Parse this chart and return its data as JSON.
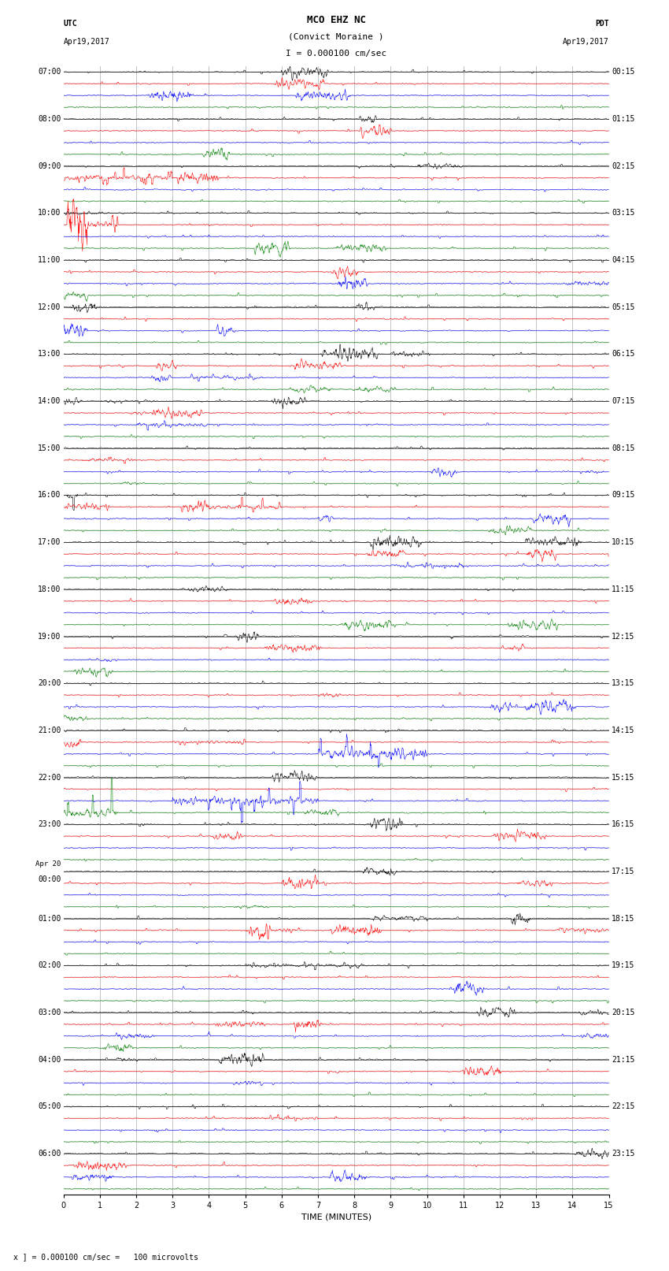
{
  "title_line1": "MCO EHZ NC",
  "title_line2": "(Convict Moraine )",
  "title_scale": "I = 0.000100 cm/sec",
  "label_utc": "UTC",
  "label_pdt": "PDT",
  "date_left": "Apr19,2017",
  "date_right": "Apr19,2017",
  "xlabel": "TIME (MINUTES)",
  "footnote": "x ] = 0.000100 cm/sec =   100 microvolts",
  "bg_color": "#ffffff",
  "trace_colors": [
    "black",
    "red",
    "blue",
    "green"
  ],
  "grid_color": "#888888",
  "vgrid_color": "#888888",
  "left_times_utc": [
    "07:00",
    "08:00",
    "09:00",
    "10:00",
    "11:00",
    "12:00",
    "13:00",
    "14:00",
    "15:00",
    "16:00",
    "17:00",
    "18:00",
    "19:00",
    "20:00",
    "21:00",
    "22:00",
    "23:00",
    "Apr 20\n00:00",
    "01:00",
    "02:00",
    "03:00",
    "04:00",
    "05:00",
    "06:00"
  ],
  "right_times_pdt": [
    "00:15",
    "01:15",
    "02:15",
    "03:15",
    "04:15",
    "05:15",
    "06:15",
    "07:15",
    "08:15",
    "09:15",
    "10:15",
    "11:15",
    "12:15",
    "13:15",
    "14:15",
    "15:15",
    "16:15",
    "17:15",
    "18:15",
    "19:15",
    "20:15",
    "21:15",
    "22:15",
    "23:15"
  ],
  "n_hours": 24,
  "n_traces_per_hour": 4,
  "xmin": 0,
  "xmax": 15,
  "xticks": [
    0,
    1,
    2,
    3,
    4,
    5,
    6,
    7,
    8,
    9,
    10,
    11,
    12,
    13,
    14,
    15
  ],
  "vline_positions": [
    1,
    2,
    3,
    4,
    5,
    6,
    7,
    8,
    9,
    10,
    11,
    12,
    13,
    14
  ],
  "fig_width": 8.5,
  "fig_height": 16.13,
  "dpi": 100,
  "font_size_title": 9,
  "font_size_labels": 7,
  "font_size_ticks": 7,
  "font_size_footnote": 7,
  "trace_amplitude": 0.38,
  "trace_lw": 0.4,
  "special_events": {
    "9_1": {
      "hour": 2,
      "trace": 1,
      "amp": 6.0,
      "xstart": 0.0,
      "xend": 3.0
    },
    "10_0": {
      "hour": 3,
      "trace": 0,
      "amp": 3.5,
      "xstart": 0.3,
      "xend": 1.2
    },
    "10_1": {
      "hour": 3,
      "trace": 1,
      "amp": 8.0,
      "xstart": 0.1,
      "xend": 1.5
    },
    "13_2": {
      "hour": 6,
      "trace": 2,
      "amp": 4.0,
      "xstart": 3.5,
      "xend": 5.5
    },
    "14_0": {
      "hour": 7,
      "trace": 0,
      "amp": 3.0,
      "xstart": 1.0,
      "xend": 2.5
    },
    "14_2": {
      "hour": 7,
      "trace": 2,
      "amp": 5.0,
      "xstart": 2.0,
      "xend": 4.0
    },
    "15_1": {
      "hour": 8,
      "trace": 1,
      "amp": 4.0,
      "xstart": 0.5,
      "xend": 2.0
    },
    "16_0": {
      "hour": 9,
      "trace": 0,
      "amp": 10.0,
      "xstart": 0.1,
      "xend": 0.4
    },
    "16_1": {
      "hour": 9,
      "trace": 1,
      "amp": 6.0,
      "xstart": 4.0,
      "xend": 6.0
    },
    "17_2": {
      "hour": 10,
      "trace": 2,
      "amp": 4.0,
      "xstart": 9.0,
      "xend": 11.0
    },
    "21_1": {
      "hour": 14,
      "trace": 1,
      "amp": 4.0,
      "xstart": 3.0,
      "xend": 5.0
    },
    "21_2": {
      "hour": 14,
      "trace": 2,
      "amp": 14.0,
      "xstart": 7.0,
      "xend": 10.0
    },
    "22_2": {
      "hour": 15,
      "trace": 2,
      "amp": 10.0,
      "xstart": 3.0,
      "xend": 7.0
    },
    "22_3": {
      "hour": 15,
      "trace": 3,
      "amp": 12.0,
      "xstart": 0.0,
      "xend": 1.5
    },
    "01_1": {
      "hour": 18,
      "trace": 1,
      "amp": 6.0,
      "xstart": 2.5,
      "xend": 4.0
    },
    "01_1b": {
      "hour": 18,
      "trace": 1,
      "amp": 5.0,
      "xstart": 5.0,
      "xend": 6.5
    },
    "02_0": {
      "hour": 19,
      "trace": 0,
      "amp": 4.0,
      "xstart": 5.0,
      "xend": 8.0
    },
    "05_1": {
      "hour": 22,
      "trace": 1,
      "amp": 4.0,
      "xstart": 5.0,
      "xend": 7.0
    }
  }
}
